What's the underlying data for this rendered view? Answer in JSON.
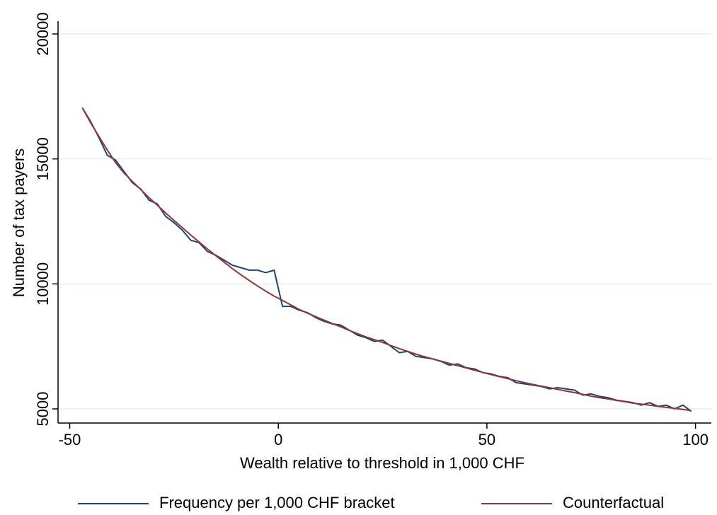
{
  "chart_data": {
    "type": "line",
    "x_label": "Wealth relative to threshold in 1,000 CHF",
    "y_label": "Number of tax payers",
    "x": [
      -47,
      -45,
      -43,
      -41,
      -39,
      -37,
      -35,
      -33,
      -31,
      -29,
      -27,
      -25,
      -23,
      -21,
      -19,
      -17,
      -15,
      -13,
      -11,
      -9,
      -7,
      -5,
      -3,
      -1,
      1,
      3,
      5,
      7,
      9,
      11,
      13,
      15,
      17,
      19,
      21,
      23,
      25,
      27,
      29,
      31,
      33,
      35,
      37,
      39,
      41,
      43,
      45,
      47,
      49,
      51,
      53,
      55,
      57,
      59,
      61,
      63,
      65,
      67,
      69,
      71,
      73,
      75,
      77,
      79,
      81,
      83,
      85,
      87,
      89,
      91,
      93,
      95,
      97,
      99
    ],
    "series": [
      {
        "name": "Frequency per 1,000 CHF bracket",
        "color": "#1a476f",
        "values": [
          17050,
          16500,
          15850,
          15150,
          14950,
          14500,
          14050,
          13800,
          13350,
          13200,
          12700,
          12450,
          12150,
          11750,
          11650,
          11300,
          11150,
          10950,
          10750,
          10650,
          10550,
          10550,
          10450,
          10550,
          9100,
          9100,
          8950,
          8850,
          8650,
          8500,
          8400,
          8350,
          8150,
          7950,
          7850,
          7700,
          7750,
          7500,
          7250,
          7300,
          7100,
          7050,
          7000,
          6900,
          6750,
          6800,
          6650,
          6600,
          6450,
          6400,
          6300,
          6250,
          6050,
          6000,
          5950,
          5900,
          5800,
          5850,
          5800,
          5750,
          5550,
          5600,
          5500,
          5450,
          5350,
          5300,
          5250,
          5150,
          5250,
          5100,
          5150,
          5000,
          5150,
          4900
        ]
      },
      {
        "name": "Counterfactual",
        "color": "#90353b",
        "values": [
          17050,
          16450,
          15900,
          15360,
          14850,
          14440,
          14100,
          13780,
          13450,
          13150,
          12840,
          12540,
          12250,
          11960,
          11680,
          11400,
          11130,
          10870,
          10610,
          10370,
          10140,
          9920,
          9710,
          9510,
          9340,
          9160,
          8980,
          8830,
          8690,
          8550,
          8410,
          8280,
          8140,
          8010,
          7880,
          7770,
          7660,
          7530,
          7410,
          7300,
          7190,
          7090,
          7000,
          6910,
          6820,
          6730,
          6640,
          6550,
          6460,
          6370,
          6290,
          6210,
          6130,
          6050,
          5980,
          5910,
          5850,
          5780,
          5710,
          5650,
          5580,
          5510,
          5450,
          5400,
          5340,
          5290,
          5230,
          5190,
          5150,
          5100,
          5060,
          5020,
          4980,
          4930
        ]
      }
    ],
    "xlim": [
      -52.8,
      103.8
    ],
    "xticks": [
      -50,
      0,
      50,
      100
    ],
    "ylim": [
      4434,
      20509
    ],
    "yticks": [
      5000,
      10000,
      15000,
      20000
    ],
    "grid": true,
    "legend": "bottom"
  }
}
